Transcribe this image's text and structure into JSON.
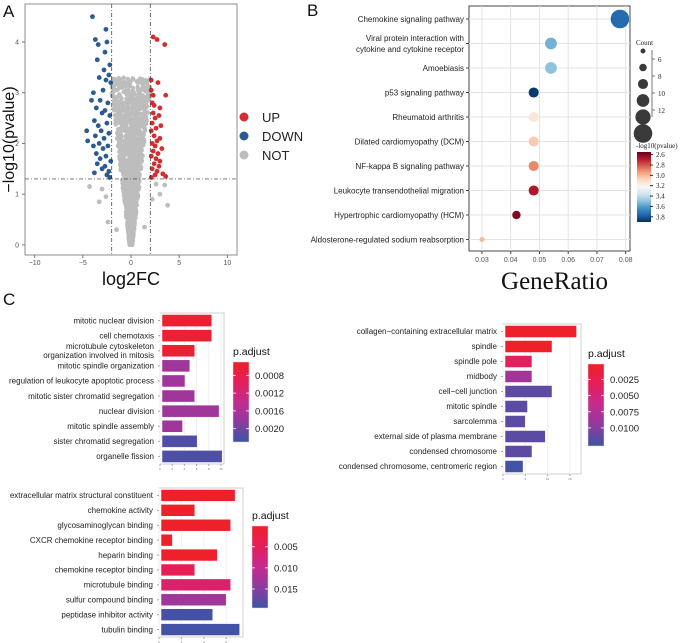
{
  "panels": {
    "a": "A",
    "b": "B",
    "c": "C"
  },
  "chart_data": [
    {
      "id": "volcano",
      "type": "scatter",
      "title": "",
      "xlabel": "log2FC",
      "ylabel": "−log10(pvalue)",
      "xlim": [
        -11,
        11
      ],
      "ylim": [
        -0.2,
        4.75
      ],
      "xticks": [
        -10,
        -5,
        0,
        5,
        10
      ],
      "yticks": [
        0,
        1,
        2,
        3,
        4
      ],
      "thresholds": {
        "log2fc": [
          -2,
          2
        ],
        "neg_log10_p": 1.3
      },
      "legend": {
        "position": "right",
        "entries": [
          {
            "label": "UP",
            "color": "#d62b2f"
          },
          {
            "label": "DOWN",
            "color": "#2d5a91"
          },
          {
            "label": "NOT",
            "color": "#bdbdbd"
          }
        ]
      },
      "series": [
        {
          "name": "UP",
          "points": [
            [
              2.3,
              4.1
            ],
            [
              2.7,
              4.05
            ],
            [
              3.5,
              3.95
            ],
            [
              2.1,
              3.25
            ],
            [
              2.8,
              3.2
            ],
            [
              2.1,
              3.05
            ],
            [
              2.3,
              2.95
            ],
            [
              3.6,
              2.95
            ],
            [
              2.2,
              2.8
            ],
            [
              2.4,
              2.75
            ],
            [
              2.3,
              2.6
            ],
            [
              3.0,
              2.7
            ],
            [
              2.5,
              2.5
            ],
            [
              2.9,
              2.55
            ],
            [
              2.2,
              2.4
            ],
            [
              3.1,
              2.35
            ],
            [
              2.6,
              2.3
            ],
            [
              2.1,
              2.25
            ],
            [
              2.4,
              2.15
            ],
            [
              3.0,
              2.1
            ],
            [
              2.7,
              2.05
            ],
            [
              2.2,
              2.0
            ],
            [
              2.5,
              1.95
            ],
            [
              3.2,
              1.9
            ],
            [
              2.3,
              1.85
            ],
            [
              2.8,
              1.8
            ],
            [
              2.1,
              1.75
            ],
            [
              2.6,
              1.7
            ],
            [
              3.0,
              1.65
            ],
            [
              2.4,
              1.6
            ],
            [
              2.9,
              1.55
            ],
            [
              2.2,
              1.5
            ],
            [
              2.7,
              1.45
            ],
            [
              3.3,
              1.4
            ],
            [
              2.5,
              1.38
            ],
            [
              3.6,
              1.35
            ],
            [
              2.1,
              1.33
            ]
          ]
        },
        {
          "name": "DOWN",
          "points": [
            [
              -4.0,
              4.5
            ],
            [
              -2.6,
              4.25
            ],
            [
              -3.7,
              4.05
            ],
            [
              -2.5,
              4.0
            ],
            [
              -3.4,
              3.95
            ],
            [
              -2.7,
              3.8
            ],
            [
              -3.5,
              3.65
            ],
            [
              -2.2,
              3.55
            ],
            [
              -2.8,
              3.45
            ],
            [
              -2.3,
              3.35
            ],
            [
              -3.3,
              3.3
            ],
            [
              -2.6,
              3.25
            ],
            [
              -2.1,
              3.2
            ],
            [
              -3.9,
              3.0
            ],
            [
              -2.9,
              3.05
            ],
            [
              -4.1,
              2.85
            ],
            [
              -3.2,
              2.85
            ],
            [
              -2.4,
              2.8
            ],
            [
              -3.6,
              2.7
            ],
            [
              -2.7,
              2.65
            ],
            [
              -3.0,
              2.6
            ],
            [
              -2.2,
              2.55
            ],
            [
              -3.8,
              2.45
            ],
            [
              -2.5,
              2.4
            ],
            [
              -3.4,
              2.35
            ],
            [
              -4.6,
              2.25
            ],
            [
              -3.1,
              2.25
            ],
            [
              -2.3,
              2.2
            ],
            [
              -3.7,
              2.15
            ],
            [
              -2.8,
              2.1
            ],
            [
              -4.5,
              2.05
            ],
            [
              -3.3,
              2.0
            ],
            [
              -2.4,
              1.95
            ],
            [
              -3.9,
              1.95
            ],
            [
              -2.9,
              1.9
            ],
            [
              -3.6,
              1.8
            ],
            [
              -2.6,
              1.75
            ],
            [
              -3.2,
              1.7
            ],
            [
              -2.1,
              1.65
            ],
            [
              -3.5,
              1.6
            ],
            [
              -2.7,
              1.55
            ],
            [
              -3.0,
              1.5
            ],
            [
              -2.3,
              1.45
            ],
            [
              -3.8,
              1.42
            ],
            [
              -2.5,
              1.38
            ],
            [
              -2.2,
              1.33
            ]
          ]
        },
        {
          "name": "NOT",
          "note": "dense V-shaped cloud of non-significant genes, |log2FC|<2 or p>0.05",
          "points": [
            [
              -4.3,
              1.15
            ],
            [
              -3.0,
              1.1
            ],
            [
              -3.3,
              0.85
            ],
            [
              -2.6,
              0.95
            ],
            [
              -2.4,
              0.45
            ],
            [
              3.8,
              0.78
            ],
            [
              3.0,
              1.0
            ],
            [
              2.6,
              1.2
            ],
            [
              3.5,
              1.18
            ],
            [
              2.2,
              0.9
            ],
            [
              -1.5,
              0.3
            ],
            [
              1.4,
              0.35
            ]
          ]
        }
      ]
    },
    {
      "id": "kegg-dotplot",
      "type": "scatter",
      "xlabel": "GeneRatio",
      "xlim": [
        0.0255,
        0.0815
      ],
      "xticks": [
        "0.03",
        "0.04",
        "0.05",
        "0.06",
        "0.07",
        "0.08"
      ],
      "categories": [
        "Chemokine signaling pathway",
        "Viral protein interaction with cytokine and cytokine receptor",
        "Amoebiasis",
        "p53 signaling pathway",
        "Rheumatoid arthritis",
        "Dilated cardiomyopathy (DCM)",
        "NF-kappa B signaling pathway",
        "Leukocyte transendothelial migration",
        "Hypertrophic cardiomyopathy (HCM)",
        "Aldosterone-regulated sodium reabsorption"
      ],
      "gene_ratio": [
        0.078,
        0.054,
        0.054,
        0.048,
        0.048,
        0.048,
        0.048,
        0.048,
        0.042,
        0.03
      ],
      "count": [
        13,
        9,
        9,
        8,
        8,
        8,
        8,
        8,
        7,
        5
      ],
      "neg_log10_pvalue": [
        3.75,
        3.55,
        3.5,
        3.88,
        3.15,
        3.05,
        2.9,
        2.68,
        2.6,
        3.0
      ],
      "size_legend": {
        "title": "Count",
        "values": [
          "6",
          "8",
          "10",
          "12"
        ]
      },
      "color_legend": {
        "title": "-log10(pvalue)",
        "values": [
          "2.6",
          "2.8",
          "3.0",
          "3.2",
          "3.4",
          "3.6",
          "3.8"
        ],
        "range": [
          2.55,
          3.9
        ]
      }
    },
    {
      "id": "go-bp",
      "type": "bar",
      "orientation": "horizontal",
      "categories": [
        "mitotic nuclear division",
        "cell chemotaxis",
        "microtubule cytoskeleton organization involved in mitosis",
        "mitotic spindle organization",
        "regulation of leukocyte apoptotic process",
        "mitotic sister chromatid segregation",
        "nuclear division",
        "mitotic spindle assembly",
        "sister chromatid segregation",
        "organelle fission"
      ],
      "values": [
        8.5,
        8.5,
        5.7,
        4.9,
        4.1,
        5.7,
        9.7,
        3.7,
        6.1,
        10.2
      ],
      "p_adjust": [
        0.0006,
        0.0006,
        0.0006,
        0.0017,
        0.0017,
        0.0017,
        0.0017,
        0.0017,
        0.0022,
        0.0022
      ],
      "xticks": [
        "0",
        "2",
        "4",
        "6",
        "8",
        "10"
      ],
      "legend": {
        "title": "p.adjust",
        "values": [
          "0.0008",
          "0.0012",
          "0.0016",
          "0.0020"
        ],
        "range": [
          0.0005,
          0.0023
        ]
      }
    },
    {
      "id": "go-cc",
      "type": "bar",
      "orientation": "horizontal",
      "categories": [
        "collagen−containing extracellular matrix",
        "spindle",
        "spindle pole",
        "midbody",
        "cell−cell junction",
        "mitotic spindle",
        "sarcolemma",
        "external side of plasma membrane",
        "condensed chromosome",
        "condensed chromosome, centromeric region"
      ],
      "values": [
        16.5,
        11,
        6.5,
        6.5,
        11,
        5.5,
        5,
        9.5,
        6.5,
        4.5
      ],
      "p_adjust": [
        0.0002,
        0.0002,
        0.0035,
        0.0085,
        0.0115,
        0.0115,
        0.0115,
        0.0115,
        0.0115,
        0.0125
      ],
      "xticks": [
        "0",
        "5",
        "10",
        "15"
      ],
      "legend": {
        "title": "p.adjust",
        "values": [
          "0.0025",
          "0.0050",
          "0.0075",
          "0.0100"
        ],
        "range": [
          0.0001,
          0.0128
        ]
      }
    },
    {
      "id": "go-mf",
      "type": "bar",
      "orientation": "horizontal",
      "categories": [
        "extracellular matrix structural constituent",
        "chemokine activity",
        "glycosaminoglycan binding",
        "CXCR chemokine receptor binding",
        "heparin binding",
        "chemokine receptor binding",
        "microtubule binding",
        "sulfur compound binding",
        "peptidase inhibitor activity",
        "tubulin binding"
      ],
      "values": [
        6.8,
        3.2,
        6.4,
        1.2,
        5.2,
        3.2,
        6.4,
        6.0,
        4.8,
        7.2
      ],
      "p_adjust": [
        0.0003,
        0.0003,
        0.0003,
        0.0003,
        0.0003,
        0.0045,
        0.0065,
        0.013,
        0.019,
        0.019
      ],
      "xticks": [
        "0",
        "2",
        "4",
        "6"
      ],
      "legend": {
        "title": "p.adjust",
        "values": [
          "0.005",
          "0.010",
          "0.015"
        ],
        "range": [
          0.0001,
          0.0195
        ]
      }
    }
  ]
}
